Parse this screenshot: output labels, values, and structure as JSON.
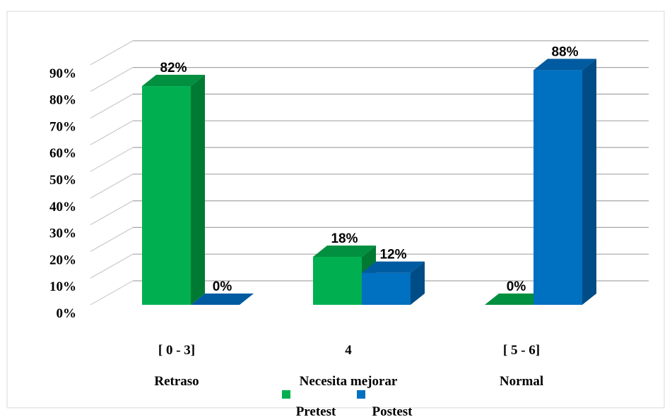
{
  "chart_data": {
    "type": "bar",
    "title": "",
    "xlabel": "",
    "ylabel": "",
    "ylim": [
      0,
      90
    ],
    "y_ticks": [
      "0%",
      "10%",
      "20%",
      "30%",
      "40%",
      "50%",
      "60%",
      "70%",
      "80%",
      "90%"
    ],
    "categories": [
      {
        "range": "[ 0 - 3]",
        "name": "Retraso"
      },
      {
        "range": "4",
        "name": "Necesita mejorar"
      },
      {
        "range": "[ 5 - 6]",
        "name": "Normal"
      }
    ],
    "series": [
      {
        "name": "Pretest",
        "values": [
          82,
          18,
          0
        ],
        "labels": [
          "82%",
          "18%",
          "0%"
        ],
        "color": "#00B050",
        "side_color": "#007A33",
        "top_color": "#00903F"
      },
      {
        "name": "Postest",
        "values": [
          0,
          12,
          88
        ],
        "labels": [
          "0%",
          "12%",
          "88%"
        ],
        "color": "#0070C0",
        "side_color": "#004C86",
        "top_color": "#005BA0"
      }
    ],
    "grid": true,
    "legend_position": "bottom"
  }
}
